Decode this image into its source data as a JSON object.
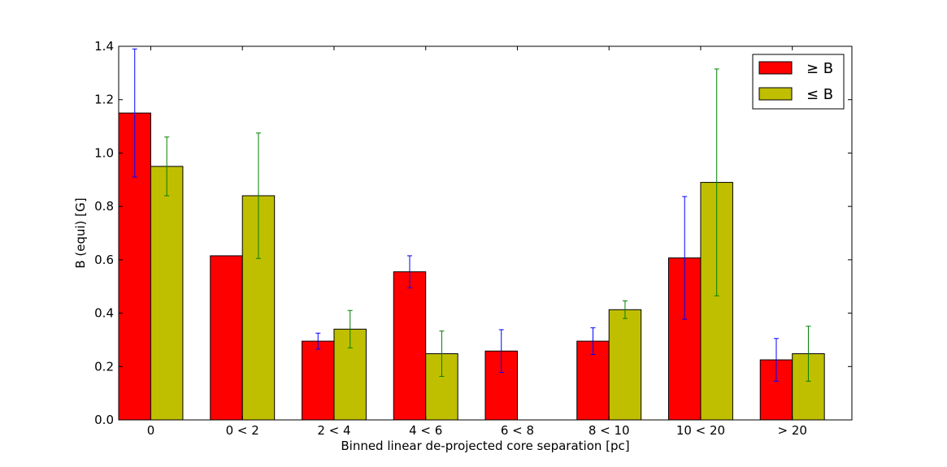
{
  "chart_data": {
    "type": "bar",
    "title": "",
    "xlabel": "Binned linear de-projected core separation [pc]",
    "ylabel": "B (equi) [G]",
    "ylim": [
      0,
      1.4
    ],
    "yticks": [
      0.0,
      0.2,
      0.4,
      0.6,
      0.8,
      1.0,
      1.2,
      1.4
    ],
    "ytick_labels": [
      "0.0",
      "0.2",
      "0.4",
      "0.6",
      "0.8",
      "1.0",
      "1.2",
      "1.4"
    ],
    "categories": [
      "0",
      "0 < 2",
      "2 < 4",
      "4 < 6",
      "6 < 8",
      "8 < 10",
      "10 < 20",
      "> 20"
    ],
    "series": [
      {
        "name": "≥ B",
        "color": "#ff0000",
        "error_color": "#0000ff",
        "values": [
          1.15,
          0.615,
          0.295,
          0.555,
          0.258,
          0.295,
          0.607,
          0.225
        ],
        "errors": [
          0.24,
          0.0,
          0.03,
          0.06,
          0.08,
          0.05,
          0.23,
          0.08
        ]
      },
      {
        "name": "≤ B",
        "color": "#bfbf00",
        "error_color": "#008000",
        "values": [
          0.95,
          0.84,
          0.34,
          0.248,
          0.0,
          0.413,
          0.89,
          0.248
        ],
        "errors": [
          0.11,
          0.235,
          0.07,
          0.085,
          0.0,
          0.033,
          0.425,
          0.103
        ]
      }
    ],
    "legend": {
      "position": "top-right",
      "entries": [
        "≥ B",
        "≤ B"
      ]
    }
  }
}
